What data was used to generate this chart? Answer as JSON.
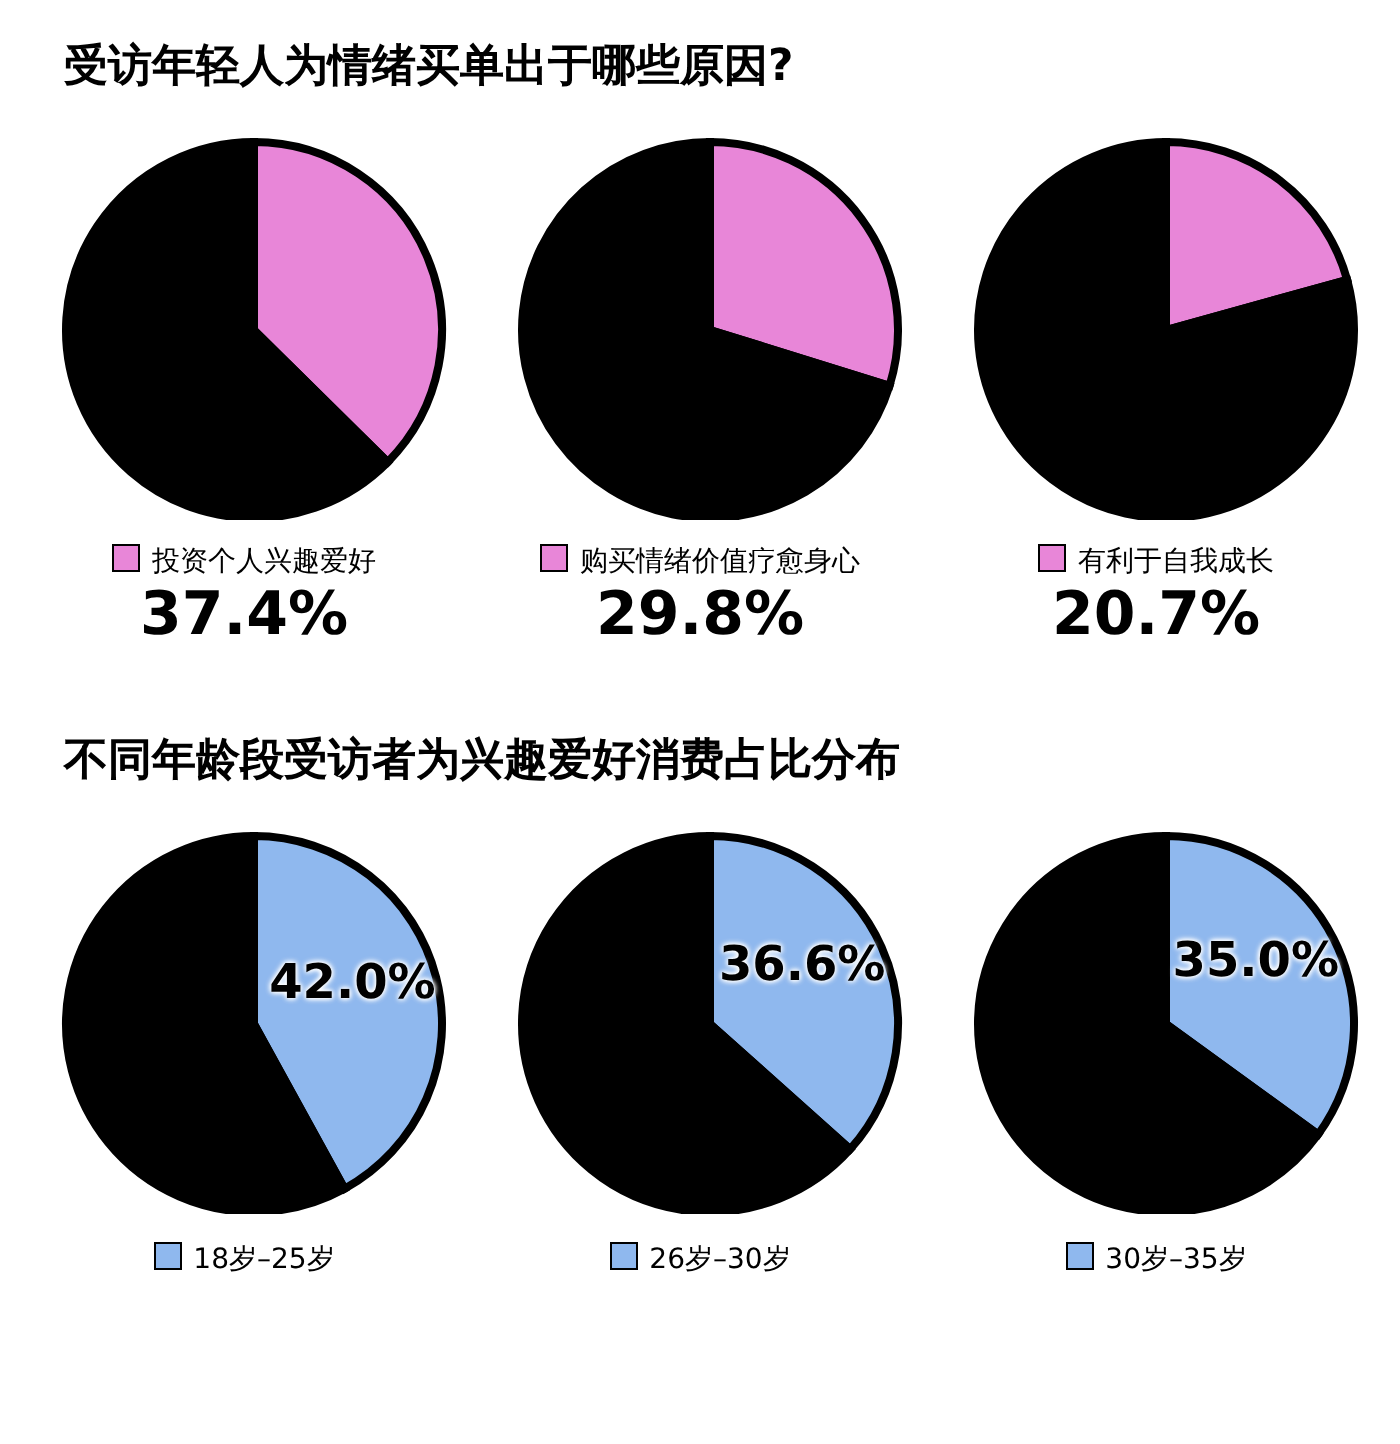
{
  "chart_data": [
    {
      "type": "pie",
      "title": "受访年轻人为情绪买单出于哪些原因?",
      "categories": [
        "投资个人兴趣爱好",
        null
      ],
      "values": [
        37.4,
        62.6
      ],
      "colors": [
        "#e886d8",
        "#000000"
      ],
      "value_labels": [
        "37.4%",
        null
      ]
    },
    {
      "type": "pie",
      "categories": [
        "购买情绪价值疗愈身心",
        null
      ],
      "values": [
        29.8,
        70.2
      ],
      "colors": [
        "#e886d8",
        "#000000"
      ],
      "value_labels": [
        "29.8%",
        null
      ]
    },
    {
      "type": "pie",
      "categories": [
        "有利于自我成长",
        null
      ],
      "values": [
        20.7,
        79.3
      ],
      "colors": [
        "#e886d8",
        "#000000"
      ],
      "value_labels": [
        "20.7%",
        null
      ]
    },
    {
      "type": "pie",
      "title": "不同年龄段受访者为兴趣爱好消费占比分布",
      "categories": [
        "18岁–25岁",
        null
      ],
      "values": [
        42.0,
        58.0
      ],
      "colors": [
        "#8fb8ee",
        "#000000"
      ],
      "value_labels": [
        "42.0%",
        null
      ]
    },
    {
      "type": "pie",
      "categories": [
        "26岁–30岁",
        null
      ],
      "values": [
        36.6,
        63.4
      ],
      "colors": [
        "#8fb8ee",
        "#000000"
      ],
      "value_labels": [
        "36.6%",
        null
      ]
    },
    {
      "type": "pie",
      "categories": [
        "30岁–35岁",
        null
      ],
      "values": [
        35.0,
        65.0
      ],
      "colors": [
        "#8fb8ee",
        "#000000"
      ],
      "value_labels": [
        "35.0%",
        null
      ]
    }
  ]
}
